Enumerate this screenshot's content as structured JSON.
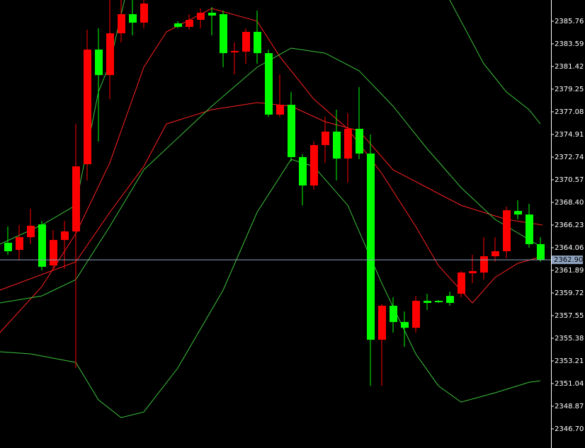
{
  "chart_data": {
    "type": "candlestick",
    "up_color": "#ff0000",
    "down_color": "#00ff00",
    "ylim": [
      2344.87,
      2387.79
    ],
    "yticks": [
      2385.76,
      2383.59,
      2381.42,
      2379.25,
      2377.08,
      2374.91,
      2372.74,
      2370.57,
      {
        "value": 2368.4,
        "label": "2368.40"
      },
      2366.23,
      2364.06,
      2361.89,
      2359.72,
      2357.55,
      2355.38,
      2353.21,
      2351.04,
      2348.87,
      {
        "value": 2346.7,
        "label": "2346.70"
      }
    ],
    "last_price": {
      "value": 2362.9,
      "label": "2362.90",
      "color": "#8fa3bf"
    },
    "open": [
      2364.53,
      2363.85,
      2365.07,
      2366.29,
      2362.36,
      2364.8,
      2365.62,
      2372.06,
      2383.04,
      2380.6,
      2384.6,
      2386.43,
      2385.62,
      null,
      null,
      2385.55,
      2385.21,
      2385.89,
      2386.57,
      2386.43,
      2382.77,
      2382.84,
      2384.74,
      2382.7,
      2376.81,
      2377.75,
      2372.74,
      2370.02,
      2373.89,
      2375.18,
      2372.6,
      2375.45,
      2373.08,
      2355.24,
      2358.5,
      2356.94,
      2356.39,
      2358.97,
      2358.97,
      2359.44,
      2359.65,
      2361.61,
      2361.68,
      2363.24,
      2363.72,
      2367.58,
      2367.24,
      2364.4
    ],
    "high": [
      2366.09,
      2366.23,
      2367.79,
      2366.63,
      2365.75,
      2366.63,
      2375.92,
      2384.94,
      2385.08,
      2387.79,
      2387.79,
      2387.79,
      2387.79,
      null,
      null,
      2385.76,
      2386.43,
      2386.98,
      2387.11,
      2386.77,
      2383.72,
      2385.08,
      2386.77,
      2383.04,
      2380.67,
      2378.98,
      2373.01,
      2374.23,
      2376.6,
      2377.28,
      2376.94,
      2379.45,
      2374.91,
      2358.63,
      2359.31,
      2357.95,
      2359.44,
      2359.65,
      2359.04,
      2359.85,
      2361.82,
      2363.38,
      2365.07,
      2365.07,
      2367.99,
      2368.6,
      2368.26,
      2365.07
    ],
    "low": [
      2363.38,
      2362.84,
      2364.4,
      2361.89,
      2361.89,
      2362.02,
      2352.53,
      2370.5,
      2374.23,
      2378.3,
      2383.72,
      2384.4,
      2385.08,
      null,
      null,
      2385.08,
      2384.94,
      2385.08,
      2384.4,
      2381.35,
      2380.67,
      2381.69,
      2381.69,
      2376.6,
      2376.6,
      2372.33,
      2368.12,
      2369.62,
      2372.19,
      2370.5,
      2370.3,
      2372.53,
      2350.83,
      2350.83,
      2355.92,
      2354.56,
      2355.92,
      2358.09,
      2358.77,
      2358.5,
      2359.31,
      2360.66,
      2361.0,
      2362.7,
      2363.04,
      2366.77,
      2364.06,
      2362.7
    ],
    "close": [
      2363.72,
      2365.07,
      2366.16,
      2362.23,
      2364.8,
      2365.62,
      2371.85,
      2383.04,
      2380.6,
      2384.6,
      2386.43,
      2385.62,
      2387.45,
      null,
      null,
      2385.21,
      2385.89,
      2386.57,
      2386.3,
      2382.7,
      2382.91,
      2384.74,
      2382.7,
      2376.81,
      2377.75,
      2372.74,
      2370.02,
      2373.89,
      2375.18,
      2372.6,
      2375.45,
      2373.08,
      2355.24,
      2358.5,
      2356.94,
      2356.39,
      2358.97,
      2358.77,
      2358.84,
      2358.77,
      2361.68,
      2361.82,
      2363.24,
      2363.72,
      2367.65,
      2367.24,
      2364.4,
      2362.9
    ],
    "series": [
      {
        "color": "#ff2020",
        "x": [
          -0.7,
          3,
          6,
          9,
          12,
          14,
          18,
          22,
          24,
          27,
          30,
          33,
          36,
          38,
          41,
          43,
          45,
          47.2
        ],
        "values": [
          2355.92,
          2360.33,
          2365.41,
          2372.19,
          2381.35,
          2384.74,
          2386.98,
          2385.76,
          2382.37,
          2378.3,
          2375.45,
          2371.18,
          2366.09,
          2362.36,
          2358.77,
          2361.21,
          2362.56,
          2363.24
        ]
      },
      {
        "color": "#ff2020",
        "x": [
          -0.7,
          6,
          9,
          12,
          14,
          18,
          22,
          25,
          28,
          31,
          34,
          37,
          40,
          44,
          47.2
        ],
        "values": [
          2359.99,
          2362.7,
          2367.45,
          2371.85,
          2375.92,
          2377.28,
          2377.96,
          2377.62,
          2376.13,
          2375.25,
          2371.52,
          2369.82,
          2368.12,
          2366.77,
          2366.23
        ]
      },
      {
        "color": "#3cc43c",
        "x": [
          -0.7,
          3,
          6,
          9,
          12,
          18,
          22,
          25,
          28,
          31,
          34,
          37,
          40,
          43,
          47.2
        ],
        "values": [
          2358.77,
          2359.44,
          2361.0,
          2366.09,
          2371.52,
          2377.62,
          2381.35,
          2383.18,
          2382.7,
          2381.01,
          2377.62,
          2373.55,
          2369.82,
          2366.77,
          2364.06
        ]
      },
      {
        "color": "#3cc43c",
        "x": [
          -0.7,
          2,
          6,
          8,
          10,
          12,
          15,
          19,
          22,
          25,
          27,
          30,
          33,
          36,
          38,
          40,
          43,
          46,
          47
        ],
        "values": [
          2354.09,
          2353.89,
          2353.07,
          2349.48,
          2347.78,
          2348.32,
          2352.53,
          2359.99,
          2367.45,
          2372.53,
          2371.85,
          2368.12,
          2360.66,
          2353.89,
          2350.83,
          2349.27,
          2350.16,
          2351.17,
          2351.31
        ]
      },
      {
        "color": "#3cc43c",
        "x": [
          -0.7,
          3,
          6,
          8,
          9,
          10.3,
          null,
          39,
          42,
          44,
          46,
          47
        ],
        "values": [
          2364.4,
          2366.23,
          2368.12,
          2378.98,
          2381.69,
          2387.79,
          null,
          2387.79,
          2381.69,
          2378.98,
          2377.28,
          2375.92
        ]
      }
    ]
  }
}
